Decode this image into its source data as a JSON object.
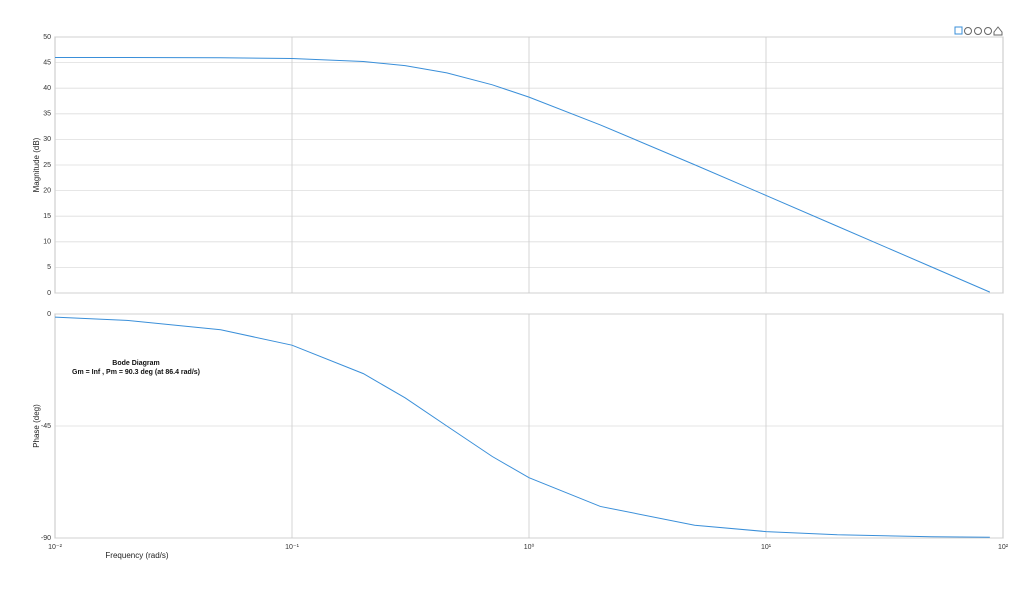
{
  "chart_data": [
    {
      "type": "line",
      "ylabel": "Magnitude (dB)",
      "xscale": "log",
      "grid": true,
      "x": [
        0.01,
        0.02,
        0.05,
        0.1,
        0.2,
        0.3,
        0.45,
        0.7,
        1,
        2,
        5,
        10,
        20,
        50,
        88
      ],
      "series": [
        {
          "color": "#3a8fd9",
          "values": [
            46.0,
            45.99,
            45.95,
            45.79,
            45.22,
            44.4,
            42.99,
            40.66,
            38.26,
            32.83,
            25.05,
            19.06,
            13.04,
            5.08,
            0.17
          ]
        }
      ],
      "xlim": [
        0.01,
        100
      ],
      "ylim": [
        0,
        50
      ],
      "yticks": [
        0,
        5,
        10,
        15,
        20,
        25,
        30,
        35,
        40,
        45,
        50
      ]
    },
    {
      "type": "line",
      "ylabel": "Phase (deg)",
      "xlabel": "Frequency  (rad/s)",
      "xscale": "log",
      "grid": true,
      "annotations": [
        "Bode Diagram",
        "Gm = Inf ,  Pm = 90.3 deg (at 86.4 rad/s)"
      ],
      "x": [
        0.01,
        0.02,
        0.05,
        0.1,
        0.2,
        0.3,
        0.45,
        0.7,
        1,
        2,
        5,
        10,
        20,
        50,
        88
      ],
      "series": [
        {
          "color": "#3a8fd9",
          "values": [
            -1.27,
            -2.54,
            -6.34,
            -12.53,
            -23.96,
            -33.69,
            -45,
            -57.26,
            -65.77,
            -77.32,
            -84.86,
            -87.42,
            -88.71,
            -89.48,
            -89.71
          ]
        }
      ],
      "xlim": [
        0.01,
        100
      ],
      "ylim": [
        -90,
        0
      ],
      "yticks": [
        -90,
        -45,
        0
      ],
      "xticks": [
        {
          "value": 0.01,
          "label": "10⁻²"
        },
        {
          "value": 0.1,
          "label": "10⁻¹"
        },
        {
          "value": 1,
          "label": "10⁰"
        },
        {
          "value": 10,
          "label": "10¹"
        },
        {
          "value": 100,
          "label": "10²"
        }
      ]
    }
  ]
}
